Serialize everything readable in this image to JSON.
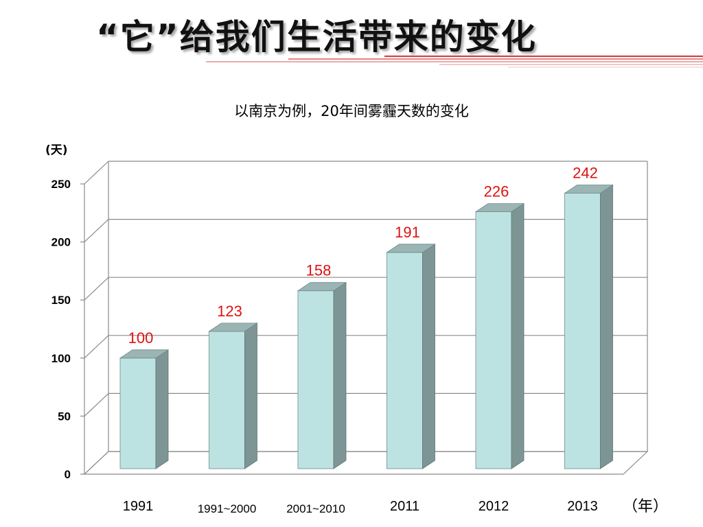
{
  "slide": {
    "title": "“它”给我们生活带来的变化"
  },
  "colors": {
    "bar_front": "#bde2e2",
    "bar_side": "#7d9595",
    "bar_top": "#9bb5b5",
    "data_label": "#e01010",
    "grid": "#8a8a8a",
    "title_rule": "#cc2222"
  },
  "chart_data": {
    "type": "bar",
    "title": "以南京为例，20年间雾霾天数的变化",
    "ylabel": "(天)",
    "xlabel": "（年）",
    "categories": [
      "1991",
      "1991~2000",
      "2001~2010",
      "2011",
      "2012",
      "2013"
    ],
    "values": [
      100,
      123,
      158,
      191,
      226,
      242
    ],
    "ylim": [
      0,
      250
    ],
    "yticks": [
      "0",
      "50",
      "100",
      "150",
      "200",
      "250"
    ],
    "grid": true,
    "style": "3d-column",
    "data_labels": true
  }
}
